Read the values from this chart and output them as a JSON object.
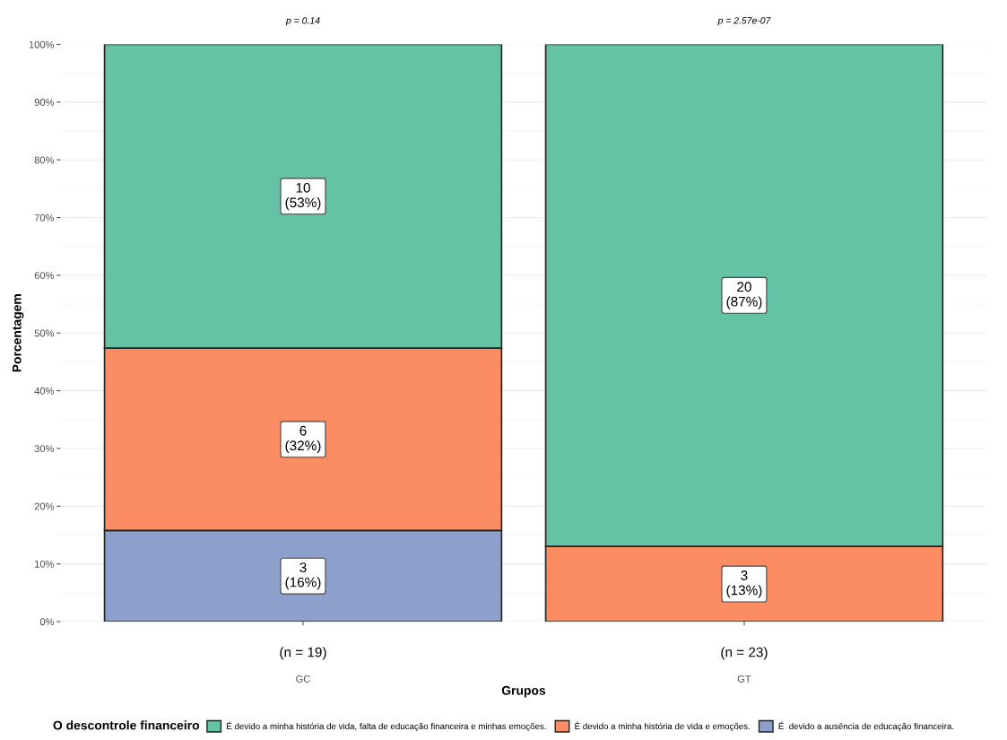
{
  "chart_data": {
    "type": "bar",
    "stacked": true,
    "xlabel": "Grupos",
    "ylabel": "Porcentagem",
    "legend_title": "O descontrole financeiro",
    "categories": [
      "GC",
      "GT"
    ],
    "series": [
      {
        "name": "É  devido a ausência de educação financeira.",
        "color": "#8da0cb",
        "values": [
          15.79,
          0
        ],
        "value_labels": [
          "3\n(16%)",
          null
        ]
      },
      {
        "name": "É devido a minha história de vida e emoções.",
        "color": "#fc8d62",
        "values": [
          31.58,
          13.04
        ],
        "value_labels": [
          "6\n(32%)",
          "3\n(13%)"
        ]
      },
      {
        "name": "É devido a minha história de vida, falta de educação financeira e minhas emoções.",
        "color": "#66c2a5",
        "values": [
          52.63,
          86.96
        ],
        "value_labels": [
          "10\n(53%)",
          "20\n(87%)"
        ]
      }
    ],
    "ylim": [
      0,
      100
    ],
    "yticks": [
      {
        "value": 0,
        "label": "0%"
      },
      {
        "value": 10,
        "label": "10%"
      },
      {
        "value": 20,
        "label": "20%"
      },
      {
        "value": 30,
        "label": "30%"
      },
      {
        "value": 40,
        "label": "40%"
      },
      {
        "value": 50,
        "label": "50%"
      },
      {
        "value": 60,
        "label": "60%"
      },
      {
        "value": 70,
        "label": "70%"
      },
      {
        "value": 80,
        "label": "80%"
      },
      {
        "value": 90,
        "label": "90%"
      },
      {
        "value": 100,
        "label": "100%"
      }
    ],
    "grid": "y",
    "legend": "bottom",
    "annotations": [
      "p = 0.14",
      "p = 2.57e-07",
      "(n = 19)",
      "(n = 23)"
    ]
  }
}
